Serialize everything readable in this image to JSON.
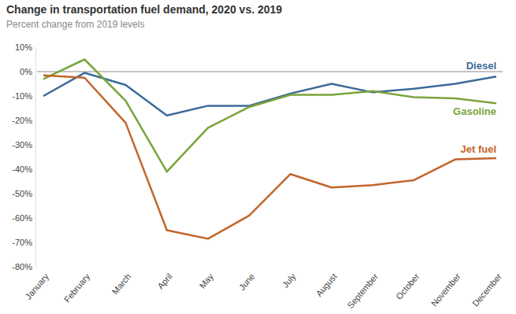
{
  "chart_data": {
    "type": "line",
    "title": "Change in transportation fuel demand, 2020 vs. 2019",
    "subtitle": "Percent change from 2019 levels",
    "categories": [
      "January",
      "February",
      "March",
      "April",
      "May",
      "June",
      "July",
      "August",
      "September",
      "October",
      "November",
      "December"
    ],
    "series": [
      {
        "name": "Diesel",
        "color": "#3d6a99",
        "values": [
          -10,
          -0.5,
          -5.5,
          -18,
          -14,
          -14,
          -9,
          -5,
          -8.5,
          -7,
          -5,
          -2
        ]
      },
      {
        "name": "Gasoline",
        "color": "#7ba43b",
        "values": [
          -3,
          5,
          -12,
          -41,
          -23,
          -14.5,
          -9.5,
          -9.5,
          -8,
          -10.5,
          -11,
          -13
        ]
      },
      {
        "name": "Jet fuel",
        "color": "#c2652b",
        "values": [
          -1.5,
          -2.5,
          -21,
          -65,
          -68.5,
          -59,
          -42,
          -47.5,
          -46.5,
          -44.5,
          -36,
          -35.5
        ]
      }
    ],
    "ylim": [
      -80,
      10
    ],
    "yticks": [
      {
        "value": 10,
        "label": "10%"
      },
      {
        "value": 0,
        "label": "0%"
      },
      {
        "value": -10,
        "label": "-10%"
      },
      {
        "value": -20,
        "label": "-20%"
      },
      {
        "value": -30,
        "label": "-30%"
      },
      {
        "value": -40,
        "label": "-40%"
      },
      {
        "value": -50,
        "label": "-50%"
      },
      {
        "value": -60,
        "label": "-60%"
      },
      {
        "value": -70,
        "label": "-70%"
      },
      {
        "value": -80,
        "label": "-80%"
      }
    ],
    "grid": false
  }
}
